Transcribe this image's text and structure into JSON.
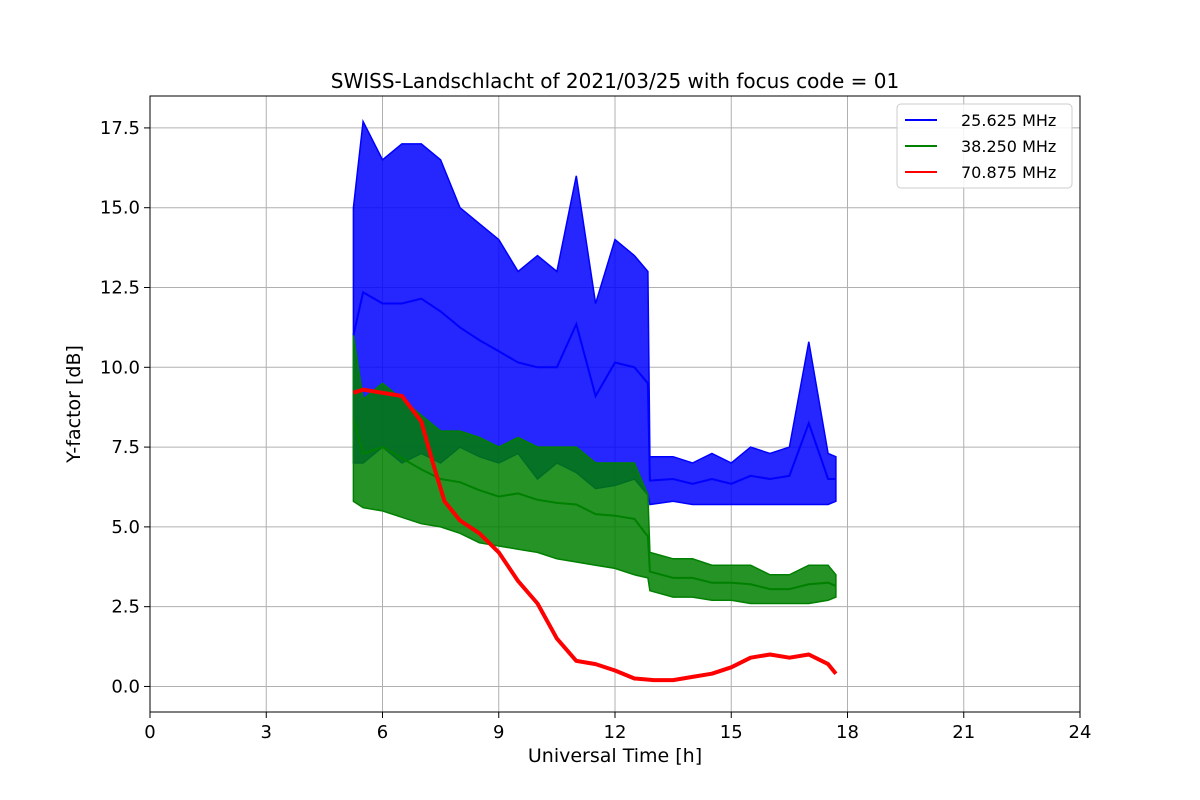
{
  "chart_data": {
    "type": "line",
    "title": "SWISS-Landschlacht of 2021/03/25 with focus code = 01",
    "xlabel": "Universal Time [h]",
    "ylabel": "Y-factor [dB]",
    "xlim": [
      0,
      24
    ],
    "ylim": [
      -0.8,
      18.5
    ],
    "xticks": [
      0,
      3,
      6,
      9,
      12,
      15,
      18,
      21,
      24
    ],
    "yticks": [
      "0.0",
      "2.5",
      "5.0",
      "7.5",
      "10.0",
      "12.5",
      "15.0",
      "17.5"
    ],
    "grid": true,
    "legend_position": "top-right",
    "series": [
      {
        "name": "25.625 MHz",
        "color": "#0000ff",
        "x": [
          5.25,
          5.5,
          6.0,
          6.5,
          7.0,
          7.5,
          8.0,
          8.5,
          9.0,
          9.5,
          10.0,
          10.5,
          11.0,
          11.5,
          12.0,
          12.5,
          12.85,
          12.9,
          13.5,
          14.0,
          14.5,
          15.0,
          15.5,
          16.0,
          16.5,
          17.0,
          17.5,
          17.7
        ],
        "y_max": [
          15.0,
          17.7,
          16.5,
          17.0,
          17.0,
          16.5,
          15.0,
          14.5,
          14.0,
          13.0,
          13.5,
          13.0,
          16.0,
          12.0,
          14.0,
          13.5,
          13.0,
          7.2,
          7.2,
          7.0,
          7.3,
          7.0,
          7.5,
          7.3,
          7.5,
          10.8,
          7.3,
          7.2
        ],
        "y_min": [
          7.0,
          7.0,
          7.5,
          7.0,
          7.3,
          7.0,
          7.5,
          7.2,
          7.0,
          7.3,
          6.5,
          7.0,
          6.7,
          6.2,
          6.3,
          6.5,
          6.0,
          5.7,
          5.8,
          5.7,
          5.7,
          5.7,
          5.7,
          5.7,
          5.7,
          5.7,
          5.7,
          5.8
        ]
      },
      {
        "name": "38.250 MHz",
        "color": "#008000",
        "x": [
          5.25,
          5.5,
          6.0,
          6.5,
          7.0,
          7.5,
          8.0,
          8.5,
          9.0,
          9.5,
          10.0,
          10.5,
          11.0,
          11.5,
          12.0,
          12.5,
          12.85,
          12.9,
          13.5,
          14.0,
          14.5,
          15.0,
          15.5,
          16.0,
          16.5,
          17.0,
          17.5,
          17.7
        ],
        "y_max": [
          11.0,
          9.0,
          9.5,
          9.0,
          8.5,
          8.0,
          8.0,
          7.8,
          7.5,
          7.8,
          7.5,
          7.5,
          7.5,
          7.0,
          7.0,
          7.0,
          6.0,
          4.2,
          4.0,
          4.0,
          3.8,
          3.8,
          3.8,
          3.5,
          3.5,
          3.8,
          3.8,
          3.5
        ],
        "y_min": [
          5.8,
          5.6,
          5.5,
          5.3,
          5.1,
          5.0,
          4.8,
          4.5,
          4.4,
          4.3,
          4.2,
          4.0,
          3.9,
          3.8,
          3.7,
          3.5,
          3.4,
          3.0,
          2.8,
          2.8,
          2.7,
          2.7,
          2.6,
          2.6,
          2.6,
          2.6,
          2.7,
          2.8
        ]
      },
      {
        "name": "70.875 MHz",
        "color": "#ff0000",
        "x": [
          5.25,
          5.5,
          6.0,
          6.5,
          7.0,
          7.3,
          7.6,
          8.0,
          8.5,
          9.0,
          9.5,
          10.0,
          10.5,
          11.0,
          11.5,
          12.0,
          12.5,
          13.0,
          13.5,
          14.0,
          14.5,
          15.0,
          15.5,
          16.0,
          16.5,
          17.0,
          17.5,
          17.7
        ],
        "y": [
          9.2,
          9.3,
          9.2,
          9.1,
          8.3,
          7.0,
          5.8,
          5.2,
          4.8,
          4.2,
          3.3,
          2.6,
          1.5,
          0.8,
          0.7,
          0.5,
          0.25,
          0.2,
          0.2,
          0.3,
          0.4,
          0.6,
          0.9,
          1.0,
          0.9,
          1.0,
          0.7,
          0.4
        ]
      }
    ]
  }
}
